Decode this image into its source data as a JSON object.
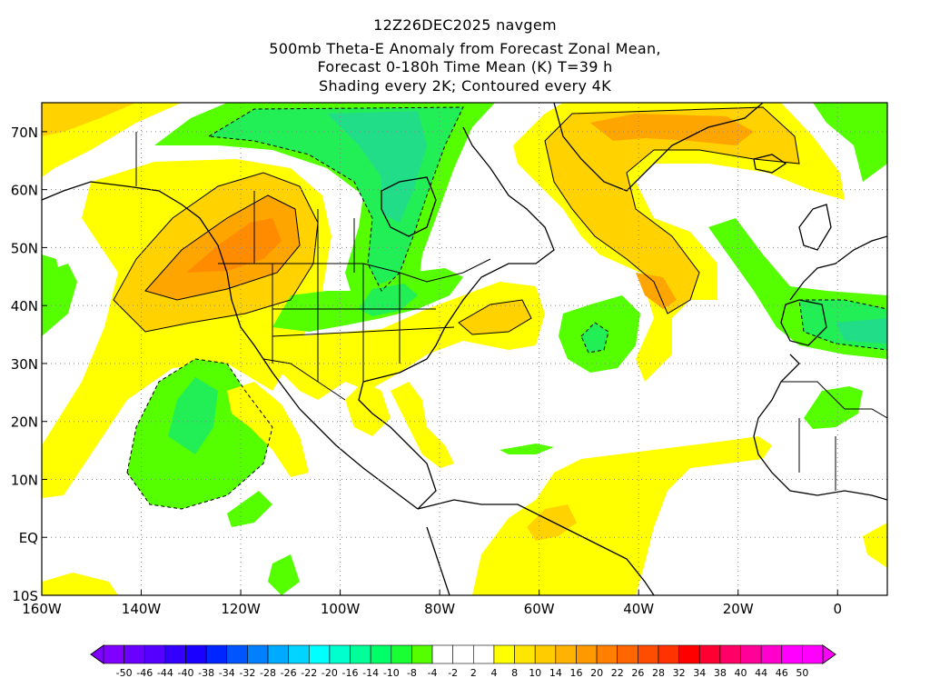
{
  "titles": {
    "line1": "12Z26DEC2025 navgem",
    "line2": "500mb Theta-E Anomaly from Forecast Zonal Mean,",
    "line3": "Forecast 0-180h Time Mean (K) T=39 h",
    "line4": "Shading every 2K; Contoured every 4K"
  },
  "map": {
    "lon_range": [
      -160,
      10
    ],
    "lat_range": [
      -10,
      75
    ],
    "lon_ticks": [
      {
        "value": -160,
        "label": "160W"
      },
      {
        "value": -140,
        "label": "140W"
      },
      {
        "value": -120,
        "label": "120W"
      },
      {
        "value": -100,
        "label": "100W"
      },
      {
        "value": -80,
        "label": "80W"
      },
      {
        "value": -60,
        "label": "60W"
      },
      {
        "value": -40,
        "label": "40W"
      },
      {
        "value": -20,
        "label": "20W"
      },
      {
        "value": 0,
        "label": "0"
      }
    ],
    "lat_ticks": [
      {
        "value": -10,
        "label": "10S"
      },
      {
        "value": 0,
        "label": "EQ"
      },
      {
        "value": 10,
        "label": "10N"
      },
      {
        "value": 20,
        "label": "20N"
      },
      {
        "value": 30,
        "label": "30N"
      },
      {
        "value": 40,
        "label": "40N"
      },
      {
        "value": 50,
        "label": "50N"
      },
      {
        "value": 60,
        "label": "60N"
      },
      {
        "value": 70,
        "label": "70N"
      }
    ],
    "grid": "dotted",
    "colors": {
      "anom_2_4": "#ffff00",
      "anom_4_8": "#ffd200",
      "anom_8_14": "#ffa500",
      "anom_14_20": "#ff8c00",
      "anom_neg_2_4": "#55ff00",
      "anom_neg_4_8": "#22ee55",
      "anom_neg_8_14": "#22dd88"
    }
  },
  "colorbar": {
    "levels": [
      "-50",
      "-46",
      "-44",
      "-40",
      "-38",
      "-34",
      "-32",
      "-28",
      "-26",
      "-22",
      "-20",
      "-16",
      "-14",
      "-10",
      "-8",
      "-4",
      "-2",
      "2",
      "4",
      "8",
      "10",
      "14",
      "16",
      "20",
      "22",
      "26",
      "28",
      "32",
      "34",
      "38",
      "40",
      "44",
      "46",
      "50"
    ],
    "colors": [
      "#7f00ff",
      "#6a00ff",
      "#5500ff",
      "#3300ff",
      "#1a00ff",
      "#0026ff",
      "#0055ff",
      "#007fff",
      "#00aaff",
      "#00d4ff",
      "#00ffff",
      "#00ffcc",
      "#00ff99",
      "#00ff66",
      "#1aff33",
      "#55ff00",
      "#ffffff",
      "#ffffff",
      "#ffffff",
      "#ffff00",
      "#ffe600",
      "#ffcc00",
      "#ffb300",
      "#ff9900",
      "#ff8000",
      "#ff6600",
      "#ff4d00",
      "#ff3300",
      "#ff0000",
      "#ff0033",
      "#ff0066",
      "#ff0099",
      "#ff00cc",
      "#ff00ff",
      "#ff00ff"
    ]
  }
}
